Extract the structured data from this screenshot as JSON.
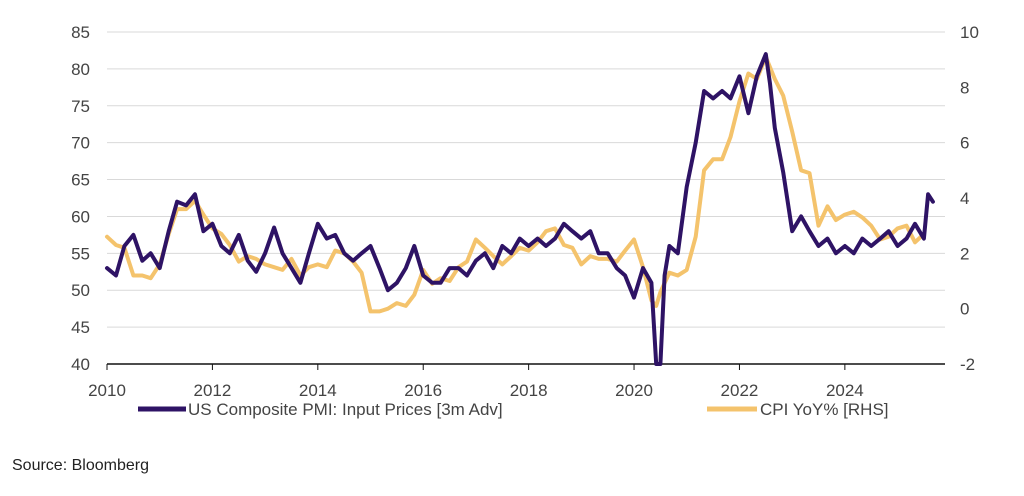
{
  "chart_data": {
    "type": "line",
    "title": "",
    "xlabel": "",
    "ylabel": "",
    "y2label": "",
    "xlim": [
      2010,
      2025.9
    ],
    "ylim_left": [
      40,
      85
    ],
    "ylim_right": [
      -2,
      10
    ],
    "x_ticks": [
      2010,
      2012,
      2014,
      2016,
      2018,
      2020,
      2022,
      2024
    ],
    "x_tick_labels": [
      "2010",
      "2012",
      "2014",
      "2016",
      "2018",
      "2020",
      "2022",
      "2024"
    ],
    "y_left_ticks": [
      40,
      45,
      50,
      55,
      60,
      65,
      70,
      75,
      80,
      85
    ],
    "y_left_tick_labels": [
      "40",
      "45",
      "50",
      "55",
      "60",
      "65",
      "70",
      "75",
      "80",
      "85"
    ],
    "y_right_ticks": [
      -2,
      0,
      2,
      4,
      6,
      8,
      10
    ],
    "y_right_tick_labels": [
      "-2",
      "0",
      "2",
      "4",
      "6",
      "8",
      "10"
    ],
    "grid": "horizontal",
    "legend_position": "bottom",
    "series": [
      {
        "name": "US Composite PMI: Input Prices [3m Adv]",
        "axis": "left",
        "color": "#2E1365",
        "x": [
          2010.0,
          2010.17,
          2010.33,
          2010.5,
          2010.67,
          2010.83,
          2011.0,
          2011.17,
          2011.33,
          2011.5,
          2011.67,
          2011.83,
          2012.0,
          2012.17,
          2012.33,
          2012.5,
          2012.67,
          2012.83,
          2013.0,
          2013.17,
          2013.33,
          2013.5,
          2013.67,
          2013.83,
          2014.0,
          2014.17,
          2014.33,
          2014.5,
          2014.67,
          2014.83,
          2015.0,
          2015.17,
          2015.33,
          2015.5,
          2015.67,
          2015.83,
          2016.0,
          2016.17,
          2016.33,
          2016.5,
          2016.67,
          2016.83,
          2017.0,
          2017.17,
          2017.33,
          2017.5,
          2017.67,
          2017.83,
          2018.0,
          2018.17,
          2018.33,
          2018.5,
          2018.67,
          2018.83,
          2019.0,
          2019.17,
          2019.33,
          2019.5,
          2019.67,
          2019.83,
          2020.0,
          2020.17,
          2020.33,
          2020.42,
          2020.5,
          2020.58,
          2020.67,
          2020.83,
          2021.0,
          2021.17,
          2021.33,
          2021.5,
          2021.67,
          2021.83,
          2022.0,
          2022.17,
          2022.33,
          2022.5,
          2022.58,
          2022.67,
          2022.83,
          2023.0,
          2023.17,
          2023.33,
          2023.5,
          2023.67,
          2023.83,
          2024.0,
          2024.17,
          2024.33,
          2024.5,
          2024.67,
          2024.83,
          2025.0,
          2025.17,
          2025.33,
          2025.5,
          2025.58,
          2025.67
        ],
        "values": [
          53,
          52,
          56,
          57.5,
          54,
          55,
          53,
          58,
          62,
          61.5,
          63,
          58,
          59,
          56,
          55,
          57.5,
          54,
          52.5,
          55,
          58.5,
          55,
          53,
          51,
          55,
          59,
          57,
          57.5,
          55,
          54,
          55,
          56,
          53,
          50,
          51,
          53,
          56,
          52,
          51,
          51,
          53,
          53,
          52,
          54,
          55,
          53,
          56,
          55,
          57,
          56,
          57,
          56,
          57,
          59,
          58,
          57,
          58,
          55,
          55,
          53,
          52,
          49,
          53,
          51,
          40,
          40,
          52,
          56,
          55,
          64,
          70,
          77,
          76,
          77,
          76,
          79,
          74,
          79,
          82,
          78,
          72,
          66,
          58,
          60,
          58,
          56,
          57,
          55,
          56,
          55,
          57,
          56,
          57,
          58,
          56,
          57,
          59,
          57,
          63,
          62
        ]
      },
      {
        "name": "CPI YoY% [RHS]",
        "axis": "right",
        "color": "#F4C36C",
        "x": [
          2010.0,
          2010.17,
          2010.33,
          2010.5,
          2010.67,
          2010.83,
          2011.0,
          2011.17,
          2011.33,
          2011.5,
          2011.67,
          2011.83,
          2012.0,
          2012.17,
          2012.33,
          2012.5,
          2012.67,
          2012.83,
          2013.0,
          2013.17,
          2013.33,
          2013.5,
          2013.67,
          2013.83,
          2014.0,
          2014.17,
          2014.33,
          2014.5,
          2014.67,
          2014.83,
          2015.0,
          2015.17,
          2015.33,
          2015.5,
          2015.67,
          2015.83,
          2016.0,
          2016.17,
          2016.33,
          2016.5,
          2016.67,
          2016.83,
          2017.0,
          2017.17,
          2017.33,
          2017.5,
          2017.67,
          2017.83,
          2018.0,
          2018.17,
          2018.33,
          2018.5,
          2018.67,
          2018.83,
          2019.0,
          2019.17,
          2019.33,
          2019.5,
          2019.67,
          2019.83,
          2020.0,
          2020.17,
          2020.33,
          2020.42,
          2020.5,
          2020.67,
          2020.83,
          2021.0,
          2021.17,
          2021.33,
          2021.5,
          2021.67,
          2021.83,
          2022.0,
          2022.17,
          2022.33,
          2022.5,
          2022.67,
          2022.83,
          2023.0,
          2023.17,
          2023.33,
          2023.5,
          2023.67,
          2023.83,
          2024.0,
          2024.17,
          2024.33,
          2024.5,
          2024.67,
          2024.83,
          2025.0,
          2025.17,
          2025.33,
          2025.5
        ],
        "values": [
          2.6,
          2.3,
          2.2,
          1.2,
          1.2,
          1.1,
          1.6,
          2.7,
          3.6,
          3.6,
          3.9,
          3.4,
          2.9,
          2.7,
          2.3,
          1.7,
          1.9,
          1.8,
          1.6,
          1.5,
          1.4,
          1.8,
          1.2,
          1.5,
          1.6,
          1.5,
          2.1,
          2.0,
          1.7,
          1.3,
          -0.1,
          -0.1,
          0,
          0.2,
          0.1,
          0.5,
          1.4,
          0.9,
          1.1,
          1.0,
          1.5,
          1.7,
          2.5,
          2.2,
          1.9,
          1.6,
          1.9,
          2.2,
          2.1,
          2.4,
          2.8,
          2.9,
          2.3,
          2.2,
          1.6,
          1.9,
          1.8,
          1.8,
          1.7,
          2.1,
          2.5,
          1.5,
          0.3,
          0.1,
          0.6,
          1.3,
          1.2,
          1.4,
          2.6,
          5.0,
          5.4,
          5.4,
          6.2,
          7.5,
          8.5,
          8.3,
          9.1,
          8.3,
          7.7,
          6.4,
          5.0,
          4.9,
          3.0,
          3.7,
          3.2,
          3.4,
          3.5,
          3.3,
          3.0,
          2.5,
          2.6,
          2.9,
          3.0,
          2.4,
          2.7
        ]
      }
    ]
  },
  "source": "Source: Bloomberg"
}
